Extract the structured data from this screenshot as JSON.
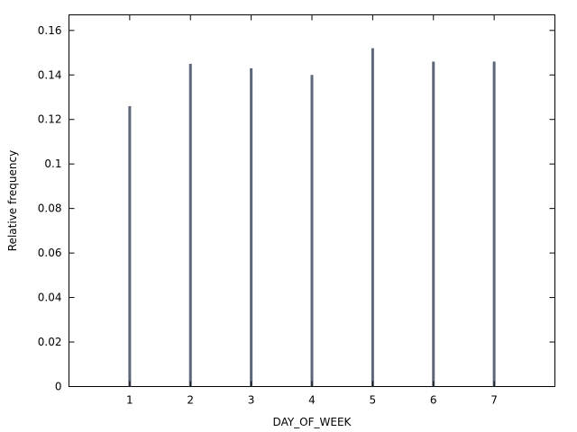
{
  "chart_data": {
    "type": "bar",
    "xlabel": "DAY_OF_WEEK",
    "ylabel": "Relative frequency",
    "categories": [
      "1",
      "2",
      "3",
      "4",
      "5",
      "6",
      "7"
    ],
    "values": [
      0.126,
      0.145,
      0.143,
      0.14,
      0.152,
      0.146,
      0.146
    ],
    "xlim": [
      0,
      8
    ],
    "ylim": [
      0,
      0.167
    ],
    "yticks": [
      0,
      0.02,
      0.04,
      0.06,
      0.08,
      0.1,
      0.12,
      0.14,
      0.16
    ],
    "ytick_labels": [
      "0",
      "0.02",
      "0.04",
      "0.06",
      "0.08",
      "0.1",
      "0.12",
      "0.14",
      "0.16"
    ],
    "grid": false,
    "legend": "none",
    "colors": {
      "bar": "#5d6779",
      "axis": "#000000"
    }
  }
}
